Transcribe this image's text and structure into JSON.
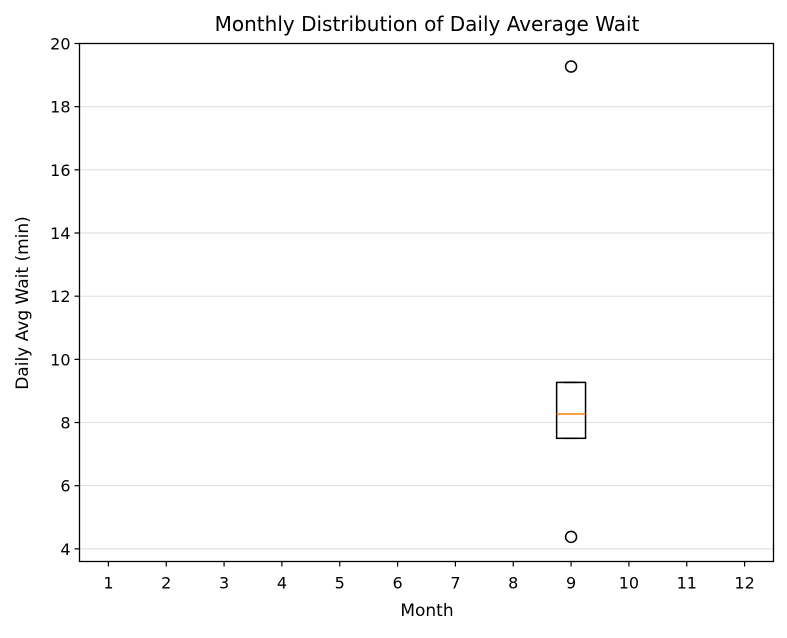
{
  "chart_data": {
    "type": "box",
    "title": "Monthly Distribution of Daily Average Wait",
    "xlabel": "Month",
    "ylabel": "Daily Avg Wait (min)",
    "categories": [
      "1",
      "2",
      "3",
      "4",
      "5",
      "6",
      "7",
      "8",
      "9",
      "10",
      "11",
      "12"
    ],
    "ylim": [
      3.6,
      20.0
    ],
    "yticks": [
      4,
      6,
      8,
      10,
      12,
      14,
      16,
      18,
      20
    ],
    "grid": "horizontal",
    "legend": "none",
    "boxes": [
      {
        "category": "9",
        "q1": 7.5,
        "median": 8.27,
        "q3": 9.27,
        "whisker_low": 7.5,
        "whisker_high": 9.27,
        "outliers": [
          19.27,
          4.38
        ]
      }
    ],
    "colors": {
      "box": "#000000",
      "median": "#ff7f0e",
      "grid": "#d9d9d9",
      "axis": "#000000"
    }
  }
}
